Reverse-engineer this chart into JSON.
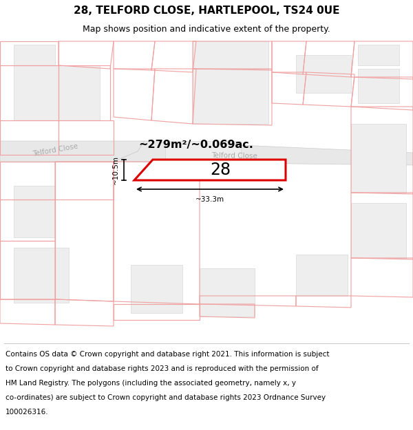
{
  "title_line1": "28, TELFORD CLOSE, HARTLEPOOL, TS24 0UE",
  "title_line2": "Map shows position and indicative extent of the property.",
  "area_label": "~279m²/~0.069ac.",
  "street_label_diag": "Telford Close",
  "street_label_horiz": "Telford Close",
  "house_number": "28",
  "dim_height": "~10.5m",
  "dim_width": "~33.3m",
  "bg_color": "#ffffff",
  "map_bg": "#ffffff",
  "plot_ec": "#dd0000",
  "parcel_ec": "#f0a0a0",
  "building_fill": "#eeeeee",
  "building_ec": "#d8d8d8",
  "road_fill": "#e8e8e8",
  "road_ec": "#cccccc",
  "footer_lines": [
    "Contains OS data © Crown copyright and database right 2021. This information is subject",
    "to Crown copyright and database rights 2023 and is reproduced with the permission of",
    "HM Land Registry. The polygons (including the associated geometry, namely x, y",
    "co-ordinates) are subject to Crown copyright and database rights 2023 Ordnance Survey",
    "100026316."
  ],
  "title_fontsize": 11,
  "subtitle_fontsize": 9,
  "footer_fontsize": 7.5
}
